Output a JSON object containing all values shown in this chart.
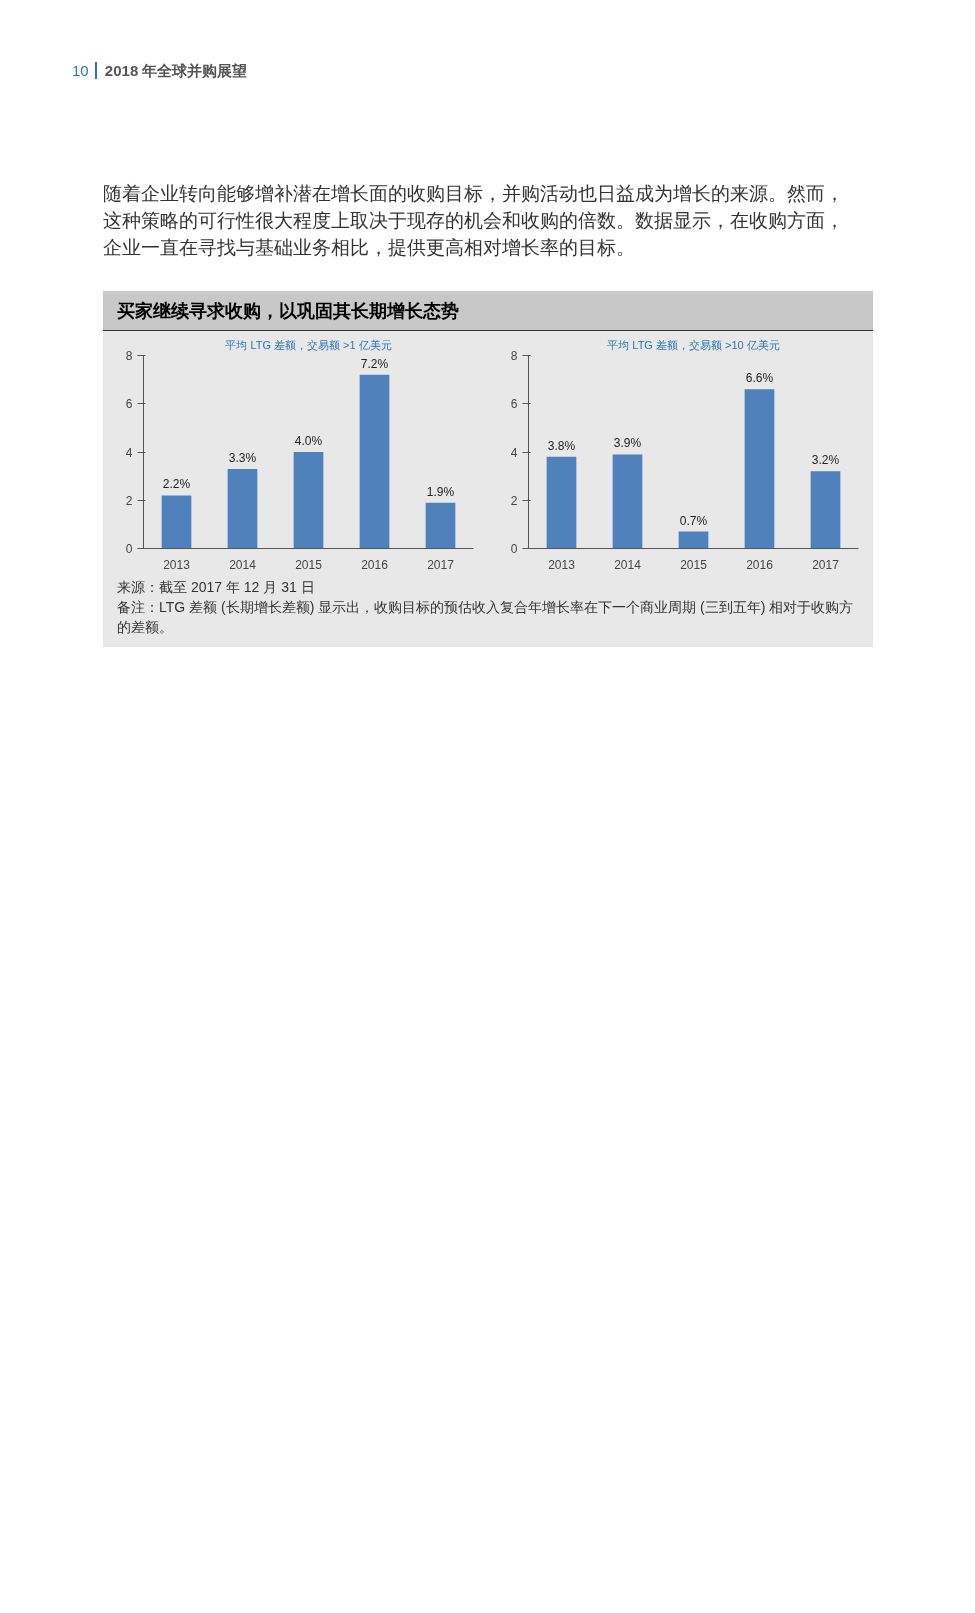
{
  "chart_data": [
    {
      "type": "bar",
      "title": "买家继续寻求收购，以巩固其长期增长态势",
      "subtitle": "平均 LTG 差额，交易额 >1 亿美元",
      "categories": [
        "2013",
        "2014",
        "2015",
        "2016",
        "2017"
      ],
      "values": [
        2.2,
        3.3,
        4.0,
        7.2,
        1.9
      ],
      "value_labels": [
        "2.2%",
        "3.3%",
        "4.0%",
        "7.2%",
        "1.9%"
      ],
      "color": "#4f81bd",
      "ylim": [
        0,
        8
      ],
      "yticks": [
        0,
        2,
        4,
        6,
        8
      ],
      "annotations": [
        "10",
        "2018 年全球并购展望",
        "随着企业转向能够增补潜在增长面的收购目标，并购活动也日益成为增长的来源。然而，这种策略的可行性很大程度上取决于现存的机会和收购的倍数。数据显示，在收购方面，企业一直在寻找与基础业务相比，提供更高相对增长率的目标。",
        "来源：截至 2017 年 12 月 31 日",
        "备注：LTG 差额 (长期增长差额) 显示出，收购目标的预估收入复合年增长率在下一个商业周期 (三到五年) 相对于收购方的差额。"
      ]
    },
    {
      "type": "bar",
      "subtitle": "平均 LTG 差额，交易额 >10 亿美元",
      "categories": [
        "2013",
        "2014",
        "2015",
        "2016",
        "2017"
      ],
      "values": [
        3.8,
        3.9,
        0.7,
        6.6,
        3.2
      ],
      "value_labels": [
        "3.8%",
        "3.9%",
        "0.7%",
        "6.6%",
        "3.2%"
      ],
      "color": "#4f81bd",
      "ylim": [
        0,
        8
      ],
      "yticks": [
        0,
        2,
        4,
        6,
        8
      ]
    }
  ]
}
